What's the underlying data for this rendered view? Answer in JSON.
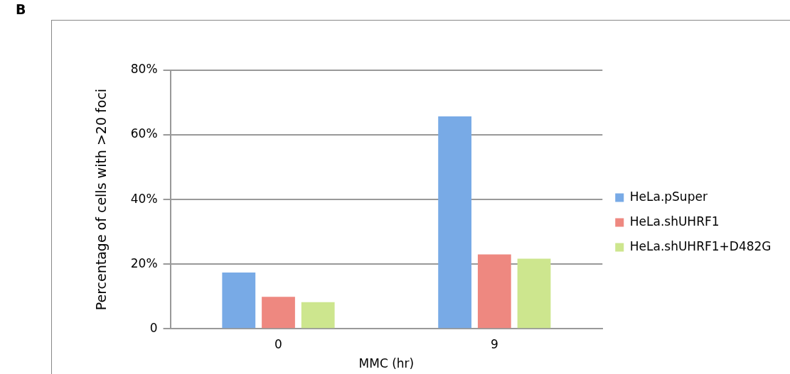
{
  "chart_data": {
    "type": "bar",
    "annotations": [
      "B"
    ],
    "xlabel": "MMC (hr)",
    "ylabel": "Percentage of cells with >20 foci",
    "categories": [
      "0",
      "9"
    ],
    "series": [
      {
        "name": "HeLa.pSuper",
        "color": "#78aae6",
        "values": [
          17.4,
          65.7
        ]
      },
      {
        "name": "HeLa.shUHRF1",
        "color": "#ee8880",
        "values": [
          9.9,
          23.0
        ]
      },
      {
        "name": "HeLa.shUHRF1+D482G",
        "color": "#cde68e",
        "values": [
          8.2,
          21.7
        ]
      }
    ],
    "ylim": [
      0,
      80
    ],
    "yticks": [
      {
        "value": 0,
        "label": "0"
      },
      {
        "value": 20,
        "label": "20%"
      },
      {
        "value": 40,
        "label": "40%"
      },
      {
        "value": 60,
        "label": "60%"
      },
      {
        "value": 80,
        "label": "80%"
      }
    ],
    "grid": "y",
    "legend": "right"
  }
}
